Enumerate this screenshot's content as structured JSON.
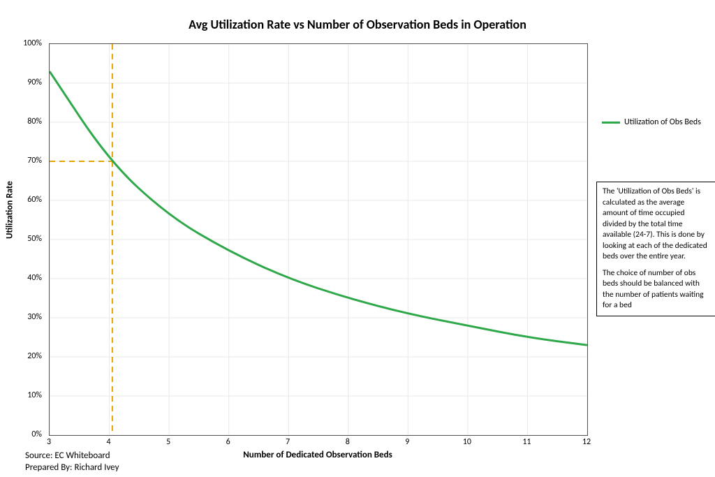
{
  "chart": {
    "type": "line",
    "title": "Avg Utilization Rate vs Number of Observation Beds in Operation",
    "title_fontsize": 18,
    "background_color": "#ffffff",
    "plot_border_color": "#555555",
    "grid_color": "#e8e8e8",
    "x": {
      "label": "Number of Dedicated Observation Beds",
      "label_fontsize": 13,
      "min": 3,
      "max": 12,
      "tick_step": 1,
      "ticks": [
        3,
        4,
        5,
        6,
        7,
        8,
        9,
        10,
        11,
        12
      ]
    },
    "y": {
      "label": "Utilization Rate",
      "label_fontsize": 13,
      "min": 0,
      "max": 1.0,
      "tick_step": 0.1,
      "tick_format": "percent",
      "ticks": [
        0,
        0.1,
        0.2,
        0.3,
        0.4,
        0.5,
        0.6,
        0.7,
        0.8,
        0.9,
        1.0
      ],
      "tick_labels": [
        "0%",
        "10%",
        "20%",
        "30%",
        "40%",
        "50%",
        "60%",
        "70%",
        "80%",
        "90%",
        "100%"
      ]
    },
    "series": [
      {
        "name": "Utilization of Obs Beds",
        "color": "#2fa84a",
        "line_width": 3,
        "x": [
          3,
          4,
          5,
          6,
          7,
          8,
          9,
          10,
          11,
          12
        ],
        "y": [
          0.93,
          0.7,
          0.56,
          0.47,
          0.4,
          0.35,
          0.31,
          0.28,
          0.25,
          0.23
        ]
      }
    ],
    "reference_lines": [
      {
        "orientation": "vertical",
        "x": 4.05,
        "y_from": 0.005,
        "y_to": 1.0,
        "color": "#e0a400",
        "dash": "8 6",
        "width": 2
      },
      {
        "orientation": "horizontal",
        "y": 0.7,
        "x_from": 3,
        "x_to": 4.05,
        "color": "#e0a400",
        "dash": "8 6",
        "width": 2
      }
    ],
    "legend": {
      "position": "right",
      "items": [
        {
          "label": "Utilization of Obs Beds",
          "color": "#2fa84a"
        }
      ]
    },
    "annotation": {
      "paragraphs": [
        "The 'Utilization of Obs Beds' is calculated as the average amount of time occupied divided by the total time available (24-7). This is done by looking at each of the dedicated beds over the entire year.",
        "The choice of number of obs beds should be balanced with the number of patients waiting for a bed"
      ],
      "border_color": "#000000",
      "fontsize": 11.5
    }
  },
  "footer": {
    "source_label": "Source: EC Whiteboard",
    "prepared_label": "Prepared By: Richard Ivey"
  }
}
